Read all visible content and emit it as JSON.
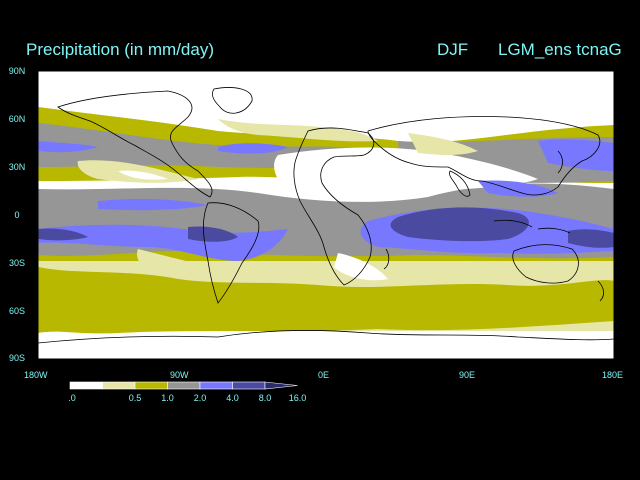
{
  "header": {
    "title": "Precipitation (in mm/day)",
    "season": "DJF",
    "run": "LGM_ens tcnaG"
  },
  "axes": {
    "lat_labels": [
      "90N",
      "60N",
      "30N",
      "0",
      "30S",
      "60S",
      "90S"
    ],
    "lon_labels": [
      "180W",
      "90W",
      "0E",
      "90E",
      "180E"
    ]
  },
  "legend": {
    "labels": [
      ".0",
      "0.5",
      "1.0",
      "2.0",
      "4.0",
      "8.0",
      "16.0"
    ],
    "colors": [
      "#ffffff",
      "#e6e6a9",
      "#b8b800",
      "#969696",
      "#7878ff",
      "#4a4aa0",
      "#2a2a6e"
    ]
  },
  "map_colors": {
    "background": "#000000",
    "coast": "#000000"
  }
}
